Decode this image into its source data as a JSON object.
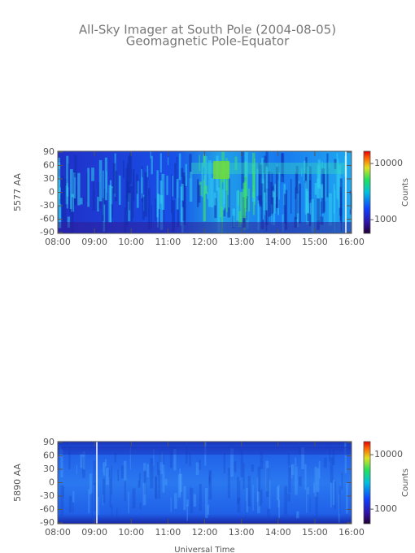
{
  "chart_data": [
    {
      "type": "heatmap",
      "title": "All-Sky Imager at South Pole (2004-08-05)",
      "subtitle": "Geomagnetic Pole-Equator",
      "ylabel": "5577 AA",
      "xlim": [
        8,
        16
      ],
      "xticks": [
        {
          "value": 8,
          "label": "08:00"
        },
        {
          "value": 9,
          "label": "09:00"
        },
        {
          "value": 10,
          "label": "10:00"
        },
        {
          "value": 11,
          "label": "11:00"
        },
        {
          "value": 12,
          "label": "12:00"
        },
        {
          "value": 13,
          "label": "13:00"
        },
        {
          "value": 14,
          "label": "14:00"
        },
        {
          "value": 15,
          "label": "15:00"
        },
        {
          "value": 16,
          "label": "16:00"
        }
      ],
      "ylim": [
        -92,
        92
      ],
      "yticks": [
        90,
        60,
        30,
        0,
        -30,
        -60,
        -90
      ],
      "colorbar": {
        "label": "Counts",
        "log_scale": true,
        "lim": [
          570,
          16500
        ],
        "ticks": [
          10000,
          1000
        ]
      }
    },
    {
      "type": "heatmap",
      "ylabel": "5890 AA",
      "xlabel": "Universal Time",
      "xlim": [
        8,
        16
      ],
      "xticks": [
        {
          "value": 8,
          "label": "08:00"
        },
        {
          "value": 9,
          "label": "09:00"
        },
        {
          "value": 10,
          "label": "10:00"
        },
        {
          "value": 11,
          "label": "11:00"
        },
        {
          "value": 12,
          "label": "12:00"
        },
        {
          "value": 13,
          "label": "13:00"
        },
        {
          "value": 14,
          "label": "14:00"
        },
        {
          "value": 15,
          "label": "15:00"
        },
        {
          "value": 16,
          "label": "16:00"
        }
      ],
      "ylim": [
        -92,
        92
      ],
      "yticks": [
        90,
        60,
        30,
        0,
        -30,
        -60,
        -90
      ],
      "colorbar": {
        "label": "Counts",
        "log_scale": true,
        "lim": [
          540,
          17400
        ],
        "ticks": [
          10000,
          1000
        ]
      }
    }
  ]
}
